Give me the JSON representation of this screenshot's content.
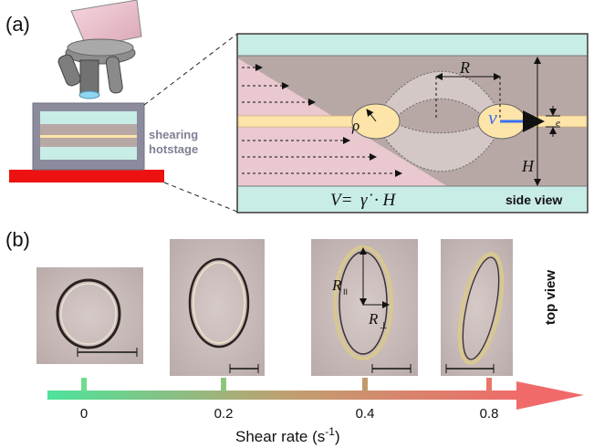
{
  "panel_a": {
    "label": "(a)",
    "stage_label_1": "shearing",
    "stage_label_2": "hotstage",
    "side_view_label": "side view",
    "symbol_R": "R",
    "symbol_rho": "ρ",
    "symbol_v": "v",
    "symbol_e": "e",
    "symbol_H": "H",
    "velocity_lhs": "V=",
    "velocity_gamma": "γ̇",
    "velocity_rhs": "· H"
  },
  "panel_b": {
    "label": "(b)",
    "top_view_label": "top view",
    "symbol_r_parallel": "R",
    "sub_parallel": "II",
    "symbol_r_perp": "R",
    "sub_perp": "⊥",
    "axis_tick_labels": [
      "0",
      "0.2",
      "0.4",
      "0.8"
    ],
    "axis_title": "Shear rate (s",
    "axis_title_exp": "-1",
    "axis_title_close": ")"
  },
  "colors": {
    "channel_wall": "#c8ece6",
    "fluid": "#b7a8a6",
    "film": "#fde4a8",
    "shear_region": "#e9c8d0",
    "heater": "#ee1111",
    "arrow_blue": "#3a6ff0",
    "axis_start": "#4de39a",
    "axis_end": "#f06a6a"
  },
  "icons": [
    "microscope-icon",
    "scale-bar-icon",
    "arrow-icon"
  ]
}
